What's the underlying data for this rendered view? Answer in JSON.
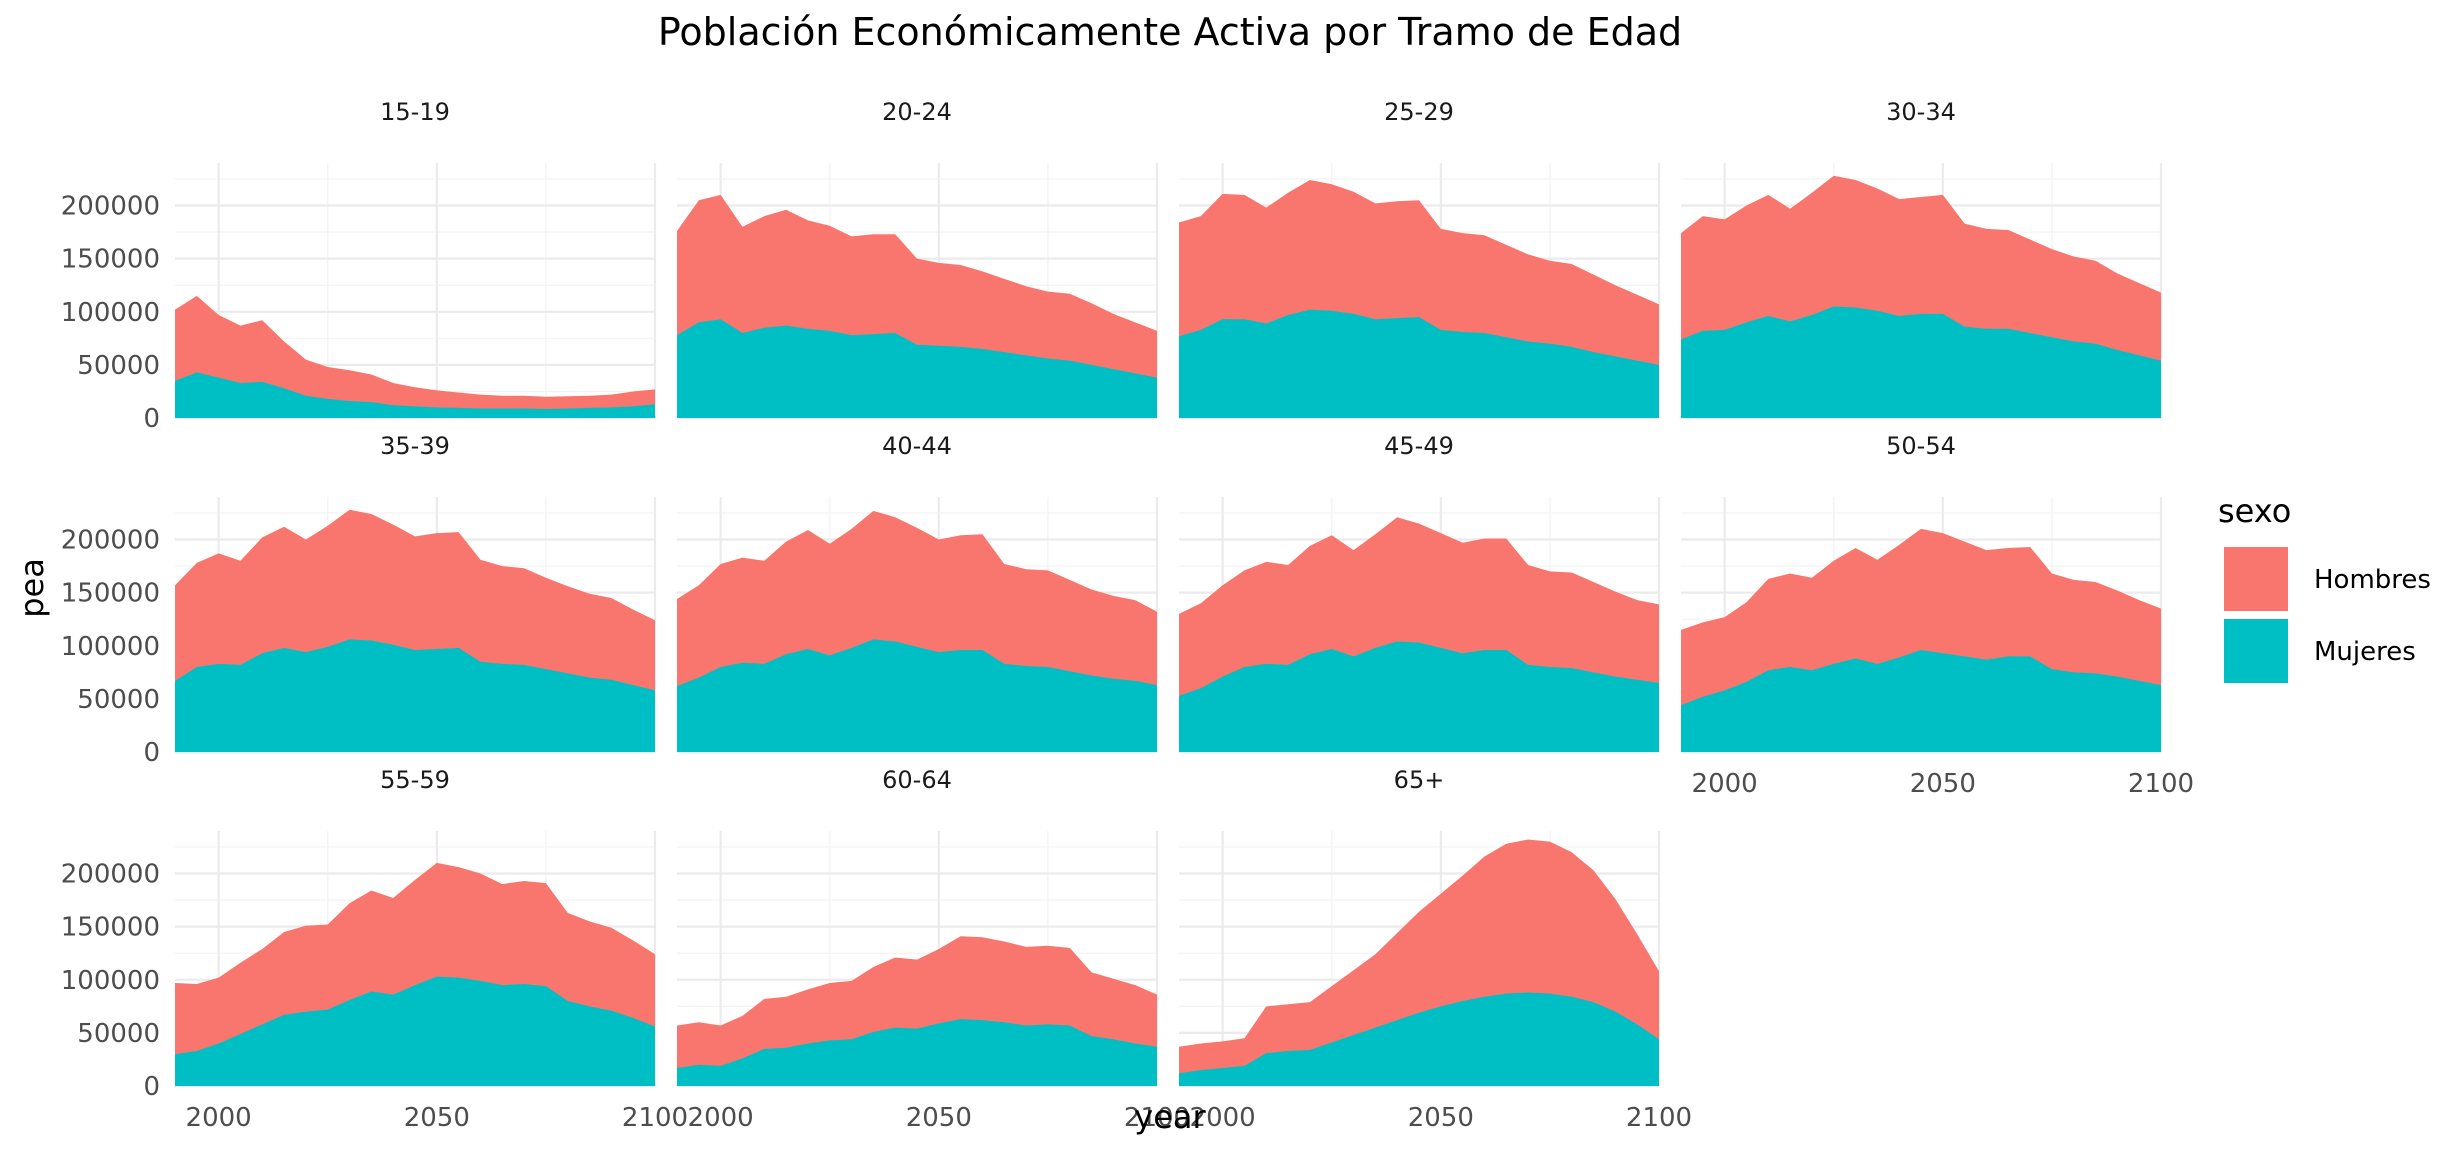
{
  "chart_data": {
    "type": "area",
    "title": "Población Económicamente Activa por Tramo de Edad",
    "xlabel": "year",
    "ylabel": "pea",
    "xlim": [
      1990,
      2100
    ],
    "ylim": [
      0,
      240000
    ],
    "x_ticks": [
      2000,
      2050,
      2100
    ],
    "y_ticks": [
      0,
      50000,
      100000,
      150000,
      200000
    ],
    "stacked": true,
    "grid": true,
    "legend_title": "sexo",
    "legend_position": "right",
    "series_info": [
      {
        "name": "Hombres",
        "color": "#F8766D"
      },
      {
        "name": "Mujeres",
        "color": "#00BFC4"
      }
    ],
    "x": [
      1990,
      1995,
      2000,
      2005,
      2010,
      2015,
      2020,
      2025,
      2030,
      2035,
      2040,
      2045,
      2050,
      2055,
      2060,
      2065,
      2070,
      2075,
      2080,
      2085,
      2090,
      2095,
      2100
    ],
    "panels": [
      {
        "label": "15-19",
        "Mujeres": [
          35000,
          43000,
          38000,
          33000,
          34000,
          28000,
          21000,
          18000,
          16000,
          15000,
          12000,
          11000,
          10000,
          9500,
          9000,
          9000,
          9000,
          8500,
          9000,
          9500,
          10000,
          11000,
          13000
        ],
        "total": [
          102000,
          115000,
          97000,
          87000,
          92000,
          72000,
          55000,
          48000,
          45000,
          41000,
          33000,
          29000,
          26000,
          24000,
          22000,
          21000,
          21000,
          20000,
          20500,
          21000,
          22000,
          25000,
          27000
        ]
      },
      {
        "label": "20-24",
        "Mujeres": [
          78000,
          90000,
          93000,
          80000,
          85000,
          87000,
          84000,
          82000,
          78000,
          79000,
          80000,
          69000,
          68000,
          67000,
          65000,
          62000,
          59000,
          56000,
          54000,
          50000,
          46000,
          42000,
          38000
        ],
        "total": [
          176000,
          205000,
          210000,
          180000,
          190000,
          196000,
          186000,
          181000,
          171000,
          173000,
          173000,
          150000,
          146000,
          144000,
          138000,
          131000,
          124000,
          119000,
          117000,
          108000,
          98000,
          90000,
          82000
        ]
      },
      {
        "label": "25-29",
        "Mujeres": [
          77000,
          83000,
          93000,
          93000,
          89000,
          97000,
          102000,
          101000,
          98000,
          93000,
          94000,
          95000,
          83000,
          81000,
          80000,
          76000,
          72000,
          70000,
          67000,
          62000,
          58000,
          54000,
          50000
        ],
        "total": [
          184000,
          190000,
          211000,
          210000,
          198000,
          212000,
          224000,
          220000,
          213000,
          202000,
          204000,
          205000,
          178000,
          174000,
          172000,
          163000,
          154000,
          148000,
          145000,
          135000,
          125000,
          116000,
          107000
        ]
      },
      {
        "label": "30-34",
        "Mujeres": [
          74000,
          82000,
          83000,
          90000,
          96000,
          91000,
          97000,
          105000,
          104000,
          101000,
          96000,
          98000,
          98000,
          86000,
          84000,
          84000,
          80000,
          76000,
          72000,
          70000,
          64000,
          59000,
          54000
        ],
        "total": [
          174000,
          190000,
          187000,
          200000,
          210000,
          197000,
          212000,
          228000,
          224000,
          216000,
          206000,
          208000,
          210000,
          183000,
          178000,
          177000,
          168000,
          159000,
          152000,
          148000,
          136000,
          127000,
          118000
        ]
      },
      {
        "label": "35-39",
        "Mujeres": [
          67000,
          80000,
          83000,
          82000,
          93000,
          98000,
          94000,
          99000,
          106000,
          105000,
          101000,
          96000,
          97000,
          98000,
          85000,
          83000,
          82000,
          78000,
          74000,
          70000,
          68000,
          63000,
          58000
        ],
        "total": [
          157000,
          178000,
          187000,
          180000,
          202000,
          212000,
          200000,
          213000,
          228000,
          224000,
          214000,
          203000,
          206000,
          207000,
          181000,
          175000,
          173000,
          164000,
          156000,
          149000,
          145000,
          134000,
          124000
        ]
      },
      {
        "label": "40-44",
        "Mujeres": [
          62000,
          70000,
          80000,
          84000,
          83000,
          92000,
          97000,
          91000,
          98000,
          106000,
          104000,
          99000,
          94000,
          96000,
          96000,
          83000,
          81000,
          80000,
          76000,
          72000,
          69000,
          67000,
          63000
        ],
        "total": [
          144000,
          157000,
          177000,
          183000,
          180000,
          198000,
          209000,
          196000,
          210000,
          227000,
          221000,
          211000,
          200000,
          204000,
          205000,
          177000,
          172000,
          171000,
          162000,
          153000,
          147000,
          143000,
          132000
        ]
      },
      {
        "label": "45-49",
        "Mujeres": [
          53000,
          60000,
          71000,
          80000,
          83000,
          82000,
          92000,
          97000,
          90000,
          98000,
          104000,
          103000,
          98000,
          93000,
          96000,
          96000,
          82000,
          80000,
          79000,
          75000,
          71000,
          68000,
          65000
        ],
        "total": [
          130000,
          140000,
          157000,
          171000,
          179000,
          176000,
          194000,
          204000,
          190000,
          205000,
          221000,
          215000,
          206000,
          197000,
          201000,
          201000,
          176000,
          170000,
          169000,
          160000,
          151000,
          143000,
          139000
        ]
      },
      {
        "label": "50-54",
        "Mujeres": [
          44000,
          52000,
          58000,
          66000,
          77000,
          80000,
          77000,
          83000,
          88000,
          83000,
          89000,
          96000,
          93000,
          90000,
          87000,
          90000,
          90000,
          78000,
          75000,
          74000,
          71000,
          67000,
          63000
        ],
        "total": [
          115000,
          122000,
          127000,
          141000,
          163000,
          168000,
          164000,
          180000,
          192000,
          181000,
          195000,
          210000,
          206000,
          198000,
          190000,
          192000,
          193000,
          168000,
          162000,
          160000,
          152000,
          143000,
          135000
        ]
      },
      {
        "label": "55-59",
        "Mujeres": [
          30000,
          33000,
          40000,
          49000,
          58000,
          67000,
          70000,
          72000,
          81000,
          89000,
          86000,
          95000,
          103000,
          102000,
          99000,
          95000,
          96000,
          94000,
          80000,
          75000,
          71000,
          64000,
          56000
        ],
        "total": [
          97000,
          96000,
          102000,
          116000,
          129000,
          145000,
          151000,
          152000,
          172000,
          184000,
          177000,
          194000,
          210000,
          206000,
          200000,
          190000,
          193000,
          191000,
          163000,
          155000,
          149000,
          137000,
          124000
        ]
      },
      {
        "label": "60-64",
        "Mujeres": [
          17000,
          20000,
          19000,
          26000,
          35000,
          36000,
          40000,
          43000,
          44000,
          51000,
          55000,
          54000,
          59000,
          63000,
          62000,
          60000,
          57000,
          58000,
          57000,
          47000,
          44000,
          40000,
          37000
        ],
        "total": [
          57000,
          60000,
          57000,
          66000,
          82000,
          84000,
          91000,
          97000,
          99000,
          112000,
          121000,
          119000,
          129000,
          141000,
          140000,
          136000,
          131000,
          132000,
          130000,
          107000,
          101000,
          95000,
          86000
        ]
      },
      {
        "label": "65+",
        "Mujeres": [
          12000,
          15000,
          17000,
          19000,
          31000,
          33000,
          34000,
          41000,
          48000,
          55000,
          62000,
          69000,
          75000,
          80000,
          84000,
          87000,
          88000,
          87000,
          84000,
          79000,
          70000,
          58000,
          44000
        ],
        "total": [
          37000,
          40000,
          42000,
          45000,
          75000,
          77000,
          79000,
          94000,
          109000,
          124000,
          144000,
          164000,
          181000,
          198000,
          216000,
          228000,
          232000,
          230000,
          220000,
          203000,
          176000,
          143000,
          108000
        ]
      }
    ]
  }
}
